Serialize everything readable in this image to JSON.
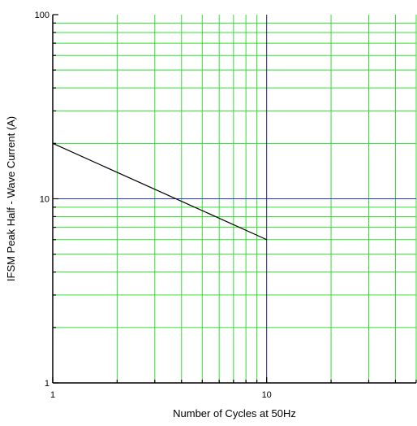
{
  "chart_data": {
    "type": "line",
    "xscale": "log",
    "yscale": "log",
    "xlim": [
      1,
      50
    ],
    "ylim": [
      1,
      100
    ],
    "xticks": [
      1,
      10
    ],
    "xtick_labels": [
      "1",
      "10"
    ],
    "yticks": [
      1,
      10,
      100
    ],
    "ytick_labels": [
      "1",
      "10",
      "100"
    ],
    "xgrid": [
      1,
      2,
      3,
      4,
      5,
      6,
      7,
      8,
      9,
      20,
      30,
      40,
      50
    ],
    "ygrid": [
      2,
      3,
      4,
      5,
      6,
      7,
      8,
      9,
      20,
      30,
      40,
      50,
      60,
      70,
      80,
      90
    ],
    "xlabel": "Number of Cycles at 50Hz",
    "ylabel": "IFSM   Peak Half - Wave Current   (A)",
    "grid": true,
    "series": [
      {
        "x": [
          1,
          10
        ],
        "y": [
          20,
          6
        ],
        "color": "#000000"
      }
    ],
    "reference_lines": [
      {
        "orientation": "horizontal",
        "value": 10,
        "color": "#2233dd"
      },
      {
        "orientation": "vertical",
        "value": 10,
        "color": "#222266"
      }
    ],
    "colors": {
      "grid": "#33dd33",
      "axis": "#000000"
    }
  }
}
